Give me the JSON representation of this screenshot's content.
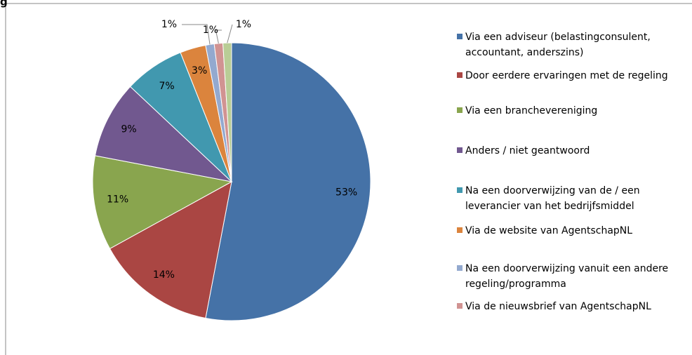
{
  "chart_data": {
    "type": "pie",
    "title": "g",
    "categories": [
      "Via een adviseur (belastingconsulent, accountant, anderszins)",
      "Door eerdere ervaringen met de regeling",
      "Via een branchevereniging",
      "Anders / niet geantwoord",
      "Na een doorverwijzing van de / een leverancier van het bedrijfsmiddel",
      "Via de website van AgentschapNL",
      "Na een doorverwijzing vanuit een andere regeling/programma",
      "Via de nieuwsbrief van AgentschapNL",
      null
    ],
    "values": [
      53,
      14,
      11,
      9,
      7,
      3,
      1,
      1,
      1
    ],
    "value_labels": [
      "53%",
      "14%",
      "11%",
      "9%",
      "7%",
      "3%",
      "1%",
      "1%",
      "1%"
    ],
    "colors": [
      "#4572a7",
      "#aa4643",
      "#89a54e",
      "#71588f",
      "#4198af",
      "#db843d",
      "#93a9cf",
      "#d19392",
      "#b9cd96"
    ],
    "legend": "right"
  }
}
